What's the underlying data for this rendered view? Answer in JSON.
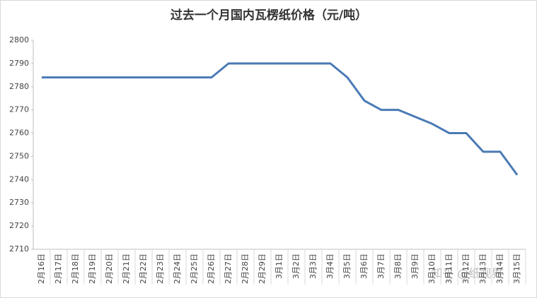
{
  "chart_data": {
    "type": "line",
    "title": "过去一个月国内瓦楞纸价格（元/吨）",
    "categories": [
      "2月16日",
      "2月17日",
      "2月18日",
      "2月19日",
      "2月20日",
      "2月21日",
      "2月22日",
      "2月23日",
      "2月24日",
      "2月25日",
      "2月26日",
      "2月27日",
      "2月28日",
      "2月29日",
      "3月1日",
      "3月2日",
      "3月3日",
      "3月4日",
      "3月5日",
      "3月6日",
      "3月7日",
      "3月8日",
      "3月9日",
      "3月10日",
      "3月11日",
      "3月12日",
      "3月13日",
      "3月14日",
      "3月15日"
    ],
    "values": [
      2784,
      2784,
      2784,
      2784,
      2784,
      2784,
      2784,
      2784,
      2784,
      2784,
      2784,
      2790,
      2790,
      2790,
      2790,
      2790,
      2790,
      2790,
      2784,
      2774,
      2770,
      2770,
      2767,
      2764,
      2760,
      2760,
      2752,
      2752,
      2742
    ],
    "color": "#4a7ab5",
    "ylim": [
      2710,
      2800
    ],
    "yticks": [
      2710,
      2720,
      2730,
      2740,
      2750,
      2760,
      2770,
      2780,
      2790,
      2800
    ],
    "annotation": "知乎 @纸视界"
  }
}
